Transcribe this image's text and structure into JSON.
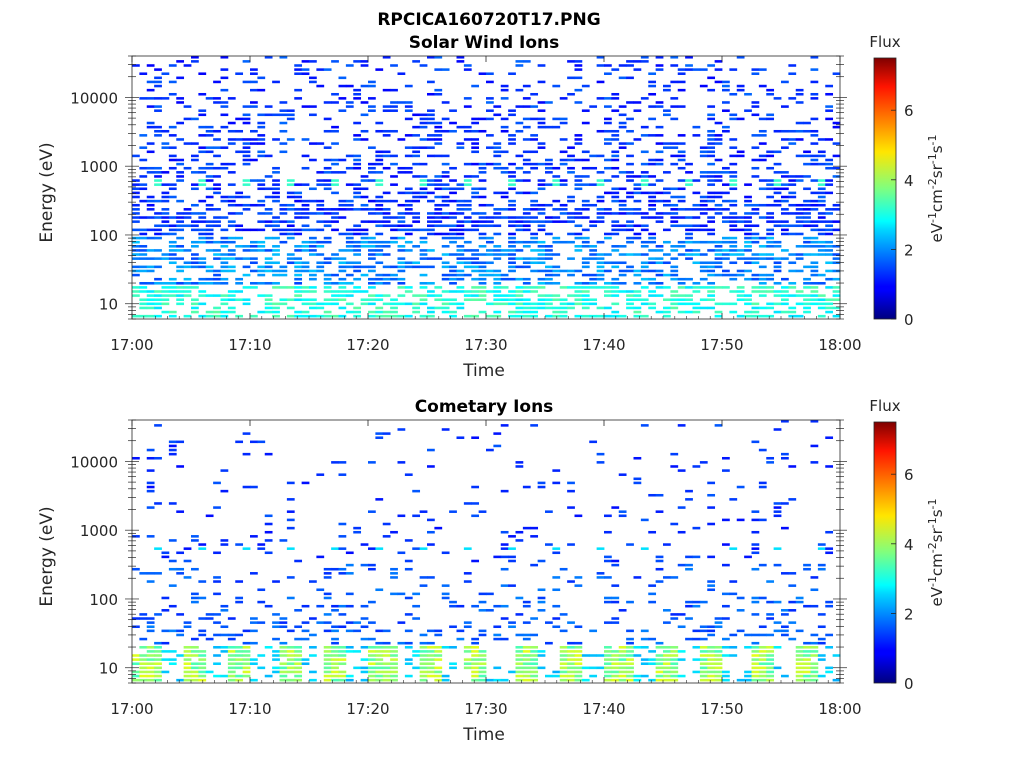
{
  "figure": {
    "title": "RPCICA160720T17.PNG"
  },
  "chart_data": [
    {
      "type": "heatmap",
      "title": "Solar Wind Ions",
      "xlabel": "Time",
      "ylabel": "Energy (eV)",
      "x_ticks": [
        "17:00",
        "17:10",
        "17:20",
        "17:30",
        "17:40",
        "17:50",
        "18:00"
      ],
      "y_ticks": [
        "10",
        "100",
        "1000",
        "10000"
      ],
      "y_scale": "log",
      "ylim": [
        6,
        40000
      ],
      "xlim": [
        "17:00",
        "18:00"
      ],
      "colorbar": {
        "title": "Flux",
        "ticks": [
          "0",
          "2",
          "4",
          "6"
        ],
        "range": [
          0,
          7.5
        ],
        "colormap": "jet"
      },
      "grid": false
    },
    {
      "type": "heatmap",
      "title": "Cometary Ions",
      "xlabel": "Time",
      "ylabel": "Energy (eV)",
      "x_ticks": [
        "17:00",
        "17:10",
        "17:20",
        "17:30",
        "17:40",
        "17:50",
        "18:00"
      ],
      "y_ticks": [
        "10",
        "100",
        "1000",
        "10000"
      ],
      "y_scale": "log",
      "ylim": [
        6,
        40000
      ],
      "xlim": [
        "17:00",
        "18:00"
      ],
      "colorbar": {
        "title": "Flux",
        "ticks": [
          "0",
          "2",
          "4",
          "6"
        ],
        "range": [
          0,
          7.5
        ],
        "colormap": "jet"
      },
      "grid": false
    }
  ]
}
